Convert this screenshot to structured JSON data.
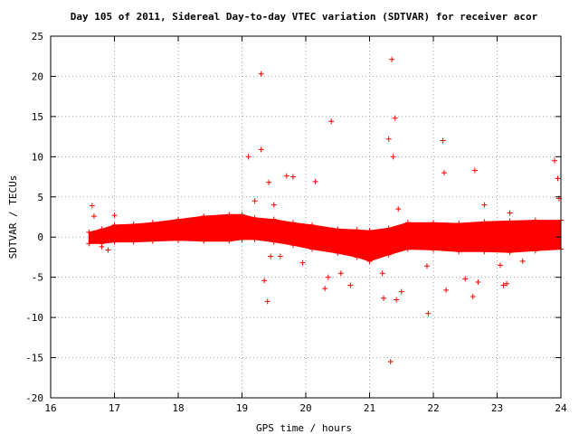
{
  "chart_data": {
    "type": "scatter",
    "title": "Day 105 of 2011, Sidereal Day-to-day VTEC variation (SDTVAR) for receiver acor",
    "xlabel": "GPS time / hours",
    "ylabel": "SDTVAR / TECUs",
    "xlim": [
      16,
      24
    ],
    "ylim": [
      -20,
      25
    ],
    "xticks": [
      "16",
      "17",
      "18",
      "19",
      "20",
      "21",
      "22",
      "23",
      "24"
    ],
    "yticks": [
      "25",
      "20",
      "15",
      "10",
      "5",
      "0",
      "-5",
      "-10",
      "-15",
      "-20"
    ],
    "grid": true,
    "marker": "+",
    "color": "#ff0000",
    "series": [
      {
        "name": "dense band upper",
        "x": [
          16.6,
          16.8,
          17.0,
          17.3,
          17.6,
          18.0,
          18.4,
          18.8,
          19.0,
          19.2,
          19.5,
          19.8,
          20.1,
          20.5,
          20.8,
          21.0,
          21.3,
          21.6,
          22.0,
          22.4,
          22.8,
          23.2,
          23.6,
          24.0
        ],
        "y": [
          0.6,
          1.0,
          1.5,
          1.6,
          1.8,
          2.2,
          2.6,
          2.8,
          2.8,
          2.4,
          2.2,
          1.8,
          1.5,
          1.0,
          0.9,
          0.8,
          1.1,
          1.8,
          1.8,
          1.7,
          1.9,
          2.0,
          2.1,
          2.1
        ]
      },
      {
        "name": "dense band lower",
        "x": [
          16.6,
          16.8,
          17.0,
          17.3,
          17.6,
          18.0,
          18.4,
          18.8,
          19.0,
          19.2,
          19.5,
          19.8,
          20.1,
          20.5,
          20.8,
          21.0,
          21.3,
          21.6,
          22.0,
          22.4,
          22.8,
          23.2,
          23.6,
          24.0
        ],
        "y": [
          -0.8,
          -0.8,
          -0.6,
          -0.6,
          -0.5,
          -0.4,
          -0.5,
          -0.5,
          -0.3,
          -0.3,
          -0.6,
          -1.0,
          -1.5,
          -2.0,
          -2.5,
          -3.0,
          -2.2,
          -1.5,
          -1.6,
          -1.8,
          -1.8,
          -1.9,
          -1.7,
          -1.5
        ]
      },
      {
        "name": "outliers",
        "x": [
          16.65,
          16.68,
          16.8,
          16.9,
          17.0,
          19.1,
          19.2,
          19.3,
          19.3,
          19.35,
          19.4,
          19.42,
          19.45,
          19.5,
          19.55,
          19.6,
          19.7,
          19.8,
          19.95,
          20.15,
          20.3,
          20.35,
          20.4,
          20.55,
          20.7,
          21.2,
          21.22,
          21.3,
          21.33,
          21.35,
          21.37,
          21.4,
          21.42,
          21.45,
          21.5,
          21.9,
          21.92,
          22.15,
          22.17,
          22.2,
          22.5,
          22.62,
          22.65,
          22.7,
          22.8,
          23.05,
          23.1,
          23.15,
          23.2,
          23.4,
          23.9,
          23.95,
          23.97
        ],
        "y": [
          3.9,
          2.6,
          -1.2,
          -1.6,
          2.7,
          10.0,
          4.5,
          20.3,
          10.9,
          -5.4,
          -8.0,
          6.8,
          -2.4,
          4.0,
          1.0,
          -2.4,
          7.6,
          7.5,
          -3.2,
          6.9,
          -6.4,
          -5.0,
          14.4,
          -4.5,
          -6.0,
          -4.5,
          -7.6,
          12.2,
          -15.5,
          22.1,
          10.0,
          14.8,
          -7.8,
          3.5,
          -6.8,
          -3.6,
          -9.5,
          12.0,
          8.0,
          -6.6,
          -5.2,
          -7.4,
          8.3,
          -5.6,
          4.0,
          -3.5,
          -6.0,
          -5.8,
          3.0,
          -3.0,
          9.5,
          7.3,
          4.8
        ]
      }
    ]
  }
}
